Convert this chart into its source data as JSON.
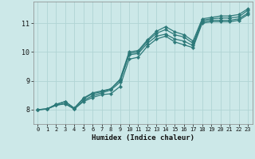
{
  "xlabel": "Humidex (Indice chaleur)",
  "bg_color": "#cce8e8",
  "line_color": "#2d7a7a",
  "grid_color": "#b0d4d4",
  "xlim": [
    -0.5,
    23.5
  ],
  "ylim": [
    7.5,
    11.75
  ],
  "yticks": [
    8,
    9,
    10,
    11
  ],
  "xticks": [
    0,
    1,
    2,
    3,
    4,
    5,
    6,
    7,
    8,
    9,
    10,
    11,
    12,
    13,
    14,
    15,
    16,
    17,
    18,
    19,
    20,
    21,
    22,
    23
  ],
  "series": [
    [
      8.0,
      8.02,
      8.15,
      8.2,
      8.02,
      8.28,
      8.42,
      8.52,
      8.55,
      8.8,
      9.75,
      9.82,
      10.2,
      10.45,
      10.55,
      10.35,
      10.25,
      10.15,
      11.0,
      11.05,
      11.05,
      11.05,
      11.1,
      11.3
    ],
    [
      8.0,
      8.02,
      8.15,
      8.22,
      8.02,
      8.32,
      8.48,
      8.58,
      8.68,
      8.95,
      9.9,
      9.95,
      10.3,
      10.55,
      10.62,
      10.45,
      10.38,
      10.22,
      11.05,
      11.1,
      11.1,
      11.1,
      11.15,
      11.35
    ],
    [
      8.0,
      8.02,
      8.18,
      8.28,
      8.05,
      8.38,
      8.55,
      8.62,
      8.72,
      9.02,
      9.95,
      10.0,
      10.38,
      10.65,
      10.78,
      10.6,
      10.52,
      10.3,
      11.1,
      11.15,
      11.18,
      11.18,
      11.22,
      11.45
    ],
    [
      8.0,
      8.02,
      8.18,
      8.28,
      8.05,
      8.4,
      8.58,
      8.65,
      8.72,
      9.05,
      10.0,
      10.05,
      10.42,
      10.72,
      10.88,
      10.7,
      10.6,
      10.38,
      11.15,
      11.2,
      11.25,
      11.25,
      11.3,
      11.5
    ]
  ]
}
